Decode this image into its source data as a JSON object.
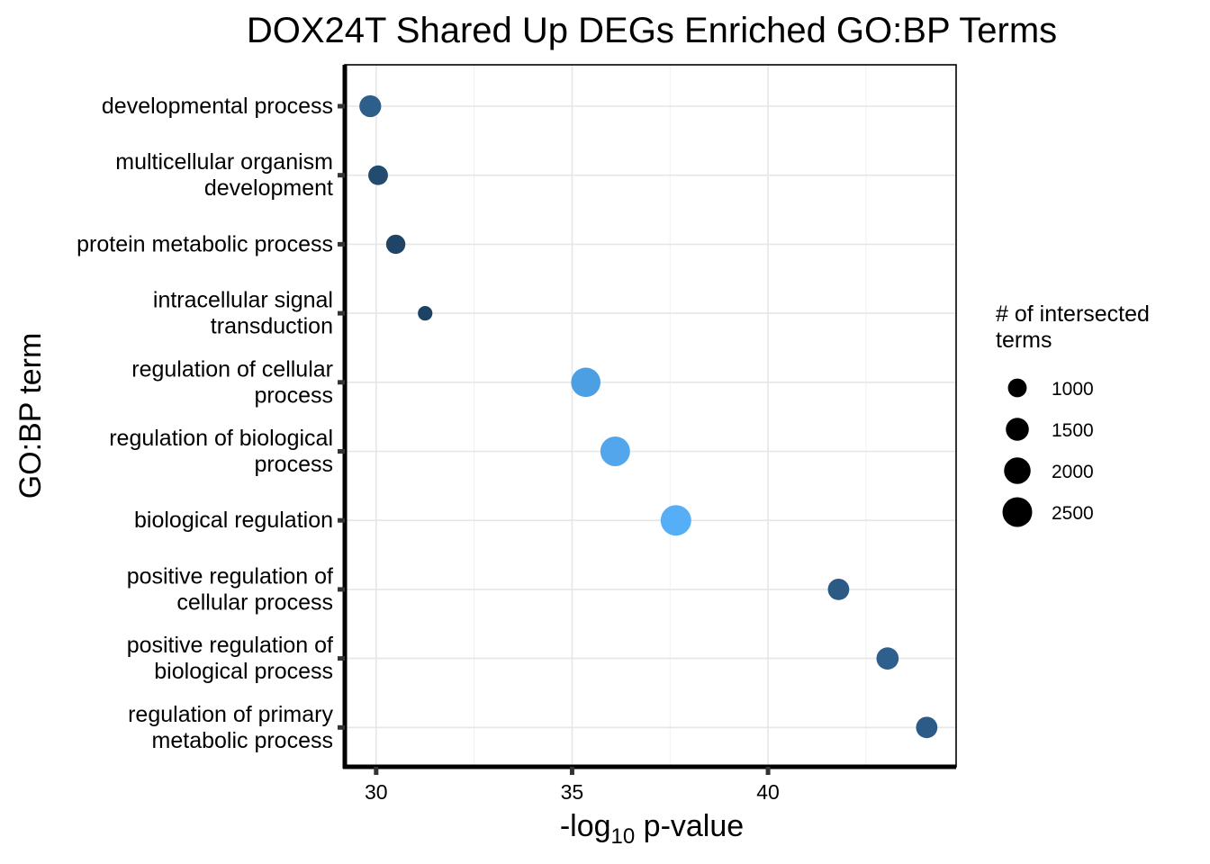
{
  "chart_data": {
    "type": "scatter",
    "title": "DOX24T Shared Up DEGs Enriched GO:BP Terms",
    "xlabel_prefix": "-log",
    "xlabel_sub": "10",
    "xlabel_suffix": " p-value",
    "ylabel": "GO:BP term",
    "xlim": [
      29.2,
      44.8
    ],
    "xticks": [
      30,
      35,
      40
    ],
    "xtick_labels": [
      "30",
      "35",
      "40"
    ],
    "categories": [
      [
        "developmental process"
      ],
      [
        "multicellular organism",
        "development"
      ],
      [
        "protein metabolic process"
      ],
      [
        "intracellular signal",
        "transduction"
      ],
      [
        "regulation of cellular",
        "process"
      ],
      [
        "regulation of biological",
        "process"
      ],
      [
        "biological regulation"
      ],
      [
        "positive regulation of",
        "cellular process"
      ],
      [
        "positive regulation of",
        "biological process"
      ],
      [
        "regulation of primary",
        "metabolic process"
      ]
    ],
    "points": [
      {
        "x": 29.85,
        "size": 1350,
        "color": "#2e5e8a"
      },
      {
        "x": 30.05,
        "size": 1100,
        "color": "#234b70"
      },
      {
        "x": 30.5,
        "size": 1050,
        "color": "#1f4466"
      },
      {
        "x": 31.25,
        "size": 600,
        "color": "#1e4264"
      },
      {
        "x": 35.35,
        "size": 2450,
        "color": "#4d9fe3"
      },
      {
        "x": 36.1,
        "size": 2500,
        "color": "#53a6ec"
      },
      {
        "x": 37.65,
        "size": 2650,
        "color": "#56aff6"
      },
      {
        "x": 41.8,
        "size": 1300,
        "color": "#2b5a85"
      },
      {
        "x": 43.05,
        "size": 1400,
        "color": "#2f5f8c"
      },
      {
        "x": 44.05,
        "size": 1300,
        "color": "#2c5b87"
      }
    ],
    "legend": {
      "title_lines": [
        "# of intersected",
        " terms"
      ],
      "entries": [
        {
          "label": "1000",
          "size": 1000
        },
        {
          "label": "1500",
          "size": 1500
        },
        {
          "label": "2000",
          "size": 2000
        },
        {
          "label": "2500",
          "size": 2500
        }
      ],
      "color": "#000000"
    }
  }
}
